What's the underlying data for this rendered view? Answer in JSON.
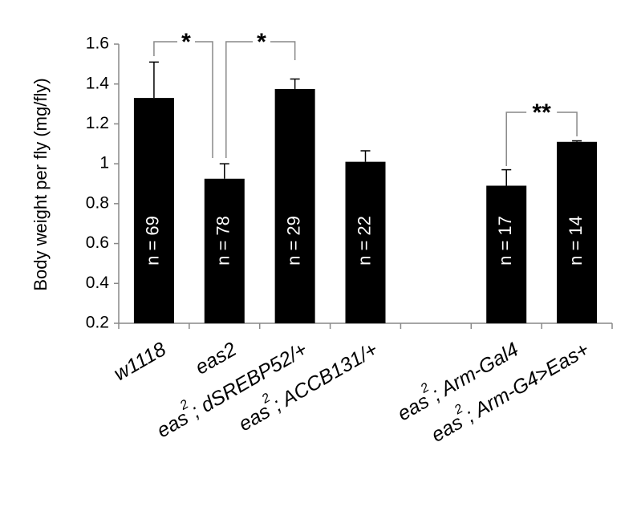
{
  "chart_data": {
    "type": "bar",
    "y_label": "Body weight per fly (mg/fly)",
    "categories": [
      "w1118",
      "eas2",
      "eas2; dSREBP52/+",
      "eas2; ACCB131/+",
      null,
      "eas2; Arm-Gal4",
      "eas2; Arm-G4>Eas+"
    ],
    "values": [
      1.33,
      0.925,
      1.375,
      1.01,
      null,
      0.89,
      1.11
    ],
    "errors": [
      0.18,
      0.075,
      0.05,
      0.055,
      null,
      0.08,
      0.005
    ],
    "value_labels": [
      "n = 69",
      "n = 78",
      "n = 29",
      "n = 22",
      null,
      "n = 17",
      "n = 14"
    ],
    "color": "#000000",
    "ylim": [
      0.2,
      1.6
    ],
    "yticks": [
      0.2,
      0.4,
      0.6,
      0.8,
      1,
      1.2,
      1.4,
      1.6
    ],
    "annotations": [
      "*",
      "*",
      "**"
    ]
  }
}
